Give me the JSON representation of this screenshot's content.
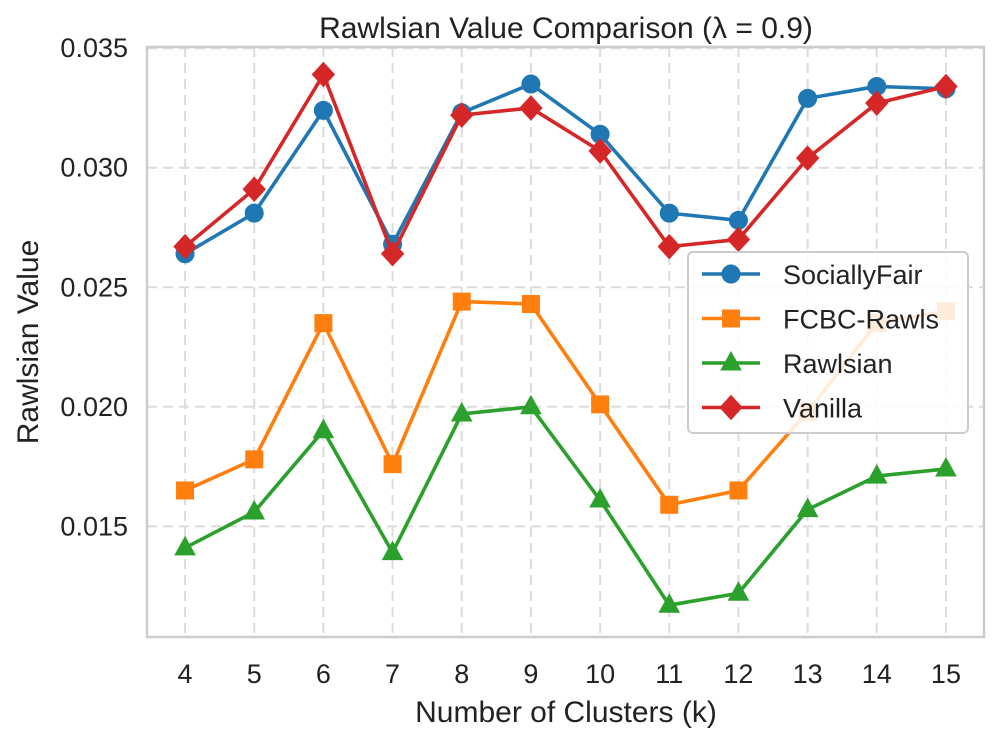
{
  "chart_data": {
    "type": "line",
    "title": "Rawlsian Value Comparison (λ = 0.9)",
    "xlabel": "Number of Clusters (k)",
    "ylabel": "Rawlsian Value",
    "x": [
      4,
      5,
      6,
      7,
      8,
      9,
      10,
      11,
      12,
      13,
      14,
      15
    ],
    "xlim": [
      3.45,
      15.55
    ],
    "ylim": [
      0.01037,
      0.03505
    ],
    "yticks": [
      0.015,
      0.02,
      0.025,
      0.03,
      0.035
    ],
    "ytick_labels": [
      "0.015",
      "0.020",
      "0.025",
      "0.030",
      "0.035"
    ],
    "xtick_labels": [
      "4",
      "5",
      "6",
      "7",
      "8",
      "9",
      "10",
      "11",
      "12",
      "13",
      "14",
      "15"
    ],
    "grid": true,
    "legend_position": "center-right",
    "series": [
      {
        "name": "SociallyFair",
        "color": "#1f77b4",
        "marker": "circle",
        "values": [
          0.0264,
          0.0281,
          0.0324,
          0.0268,
          0.0323,
          0.0335,
          0.0314,
          0.0281,
          0.0278,
          0.0329,
          0.0334,
          0.0333
        ]
      },
      {
        "name": "FCBC-Rawls",
        "color": "#ff7f0e",
        "marker": "square",
        "values": [
          0.0165,
          0.0178,
          0.0235,
          0.0176,
          0.0244,
          0.0243,
          0.0201,
          0.0159,
          0.0165,
          0.0198,
          0.0235,
          0.024
        ]
      },
      {
        "name": "Rawlsian",
        "color": "#2ca02c",
        "marker": "triangle",
        "values": [
          0.0141,
          0.0156,
          0.019,
          0.0139,
          0.0197,
          0.02,
          0.0161,
          0.0117,
          0.0122,
          0.0157,
          0.0171,
          0.0174
        ]
      },
      {
        "name": "Vanilla",
        "color": "#d62728",
        "marker": "diamond",
        "values": [
          0.0267,
          0.0291,
          0.0339,
          0.0264,
          0.0322,
          0.0325,
          0.0307,
          0.0267,
          0.027,
          0.0304,
          0.0327,
          0.0334
        ]
      }
    ]
  }
}
